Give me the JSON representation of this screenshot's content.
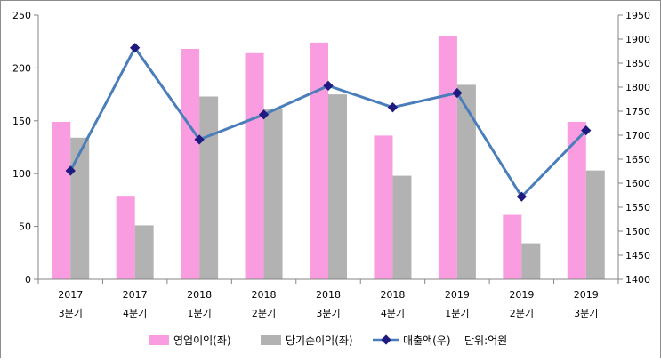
{
  "chart_data": {
    "type": "bar",
    "categories": [
      [
        "2017",
        "3분기"
      ],
      [
        "2017",
        "4분기"
      ],
      [
        "2018",
        "1분기"
      ],
      [
        "2018",
        "2분기"
      ],
      [
        "2018",
        "3분기"
      ],
      [
        "2018",
        "4분기"
      ],
      [
        "2019",
        "1분기"
      ],
      [
        "2019",
        "2분기"
      ],
      [
        "2019",
        "3분기"
      ]
    ],
    "series": [
      {
        "name": "영업이익(좌)",
        "type": "bar",
        "axis": "left",
        "color": "#f99ce0",
        "values": [
          149,
          79,
          218,
          214,
          224,
          136,
          230,
          61,
          149
        ]
      },
      {
        "name": "당기순이익(좌)",
        "type": "bar",
        "axis": "left",
        "color": "#b2b2b2",
        "values": [
          134,
          51,
          173,
          161,
          175,
          98,
          184,
          34,
          103
        ]
      },
      {
        "name": "매출액(우)",
        "type": "line",
        "axis": "right",
        "color": "#4a7ebb",
        "marker_color": "#1f1a80",
        "values": [
          1626,
          1882,
          1691,
          1743,
          1803,
          1758,
          1788,
          1572,
          1710
        ]
      }
    ],
    "y_left": {
      "min": 0,
      "max": 250,
      "step": 50,
      "ticks": [
        "0",
        "50",
        "100",
        "150",
        "200",
        "250"
      ]
    },
    "y_right": {
      "min": 1400,
      "max": 1950,
      "step": 50,
      "ticks": [
        "1400",
        "1450",
        "1500",
        "1550",
        "1600",
        "1650",
        "1700",
        "1750",
        "1800",
        "1850",
        "1900",
        "1950"
      ]
    },
    "unit_note": "단위:억원",
    "legend_position": "bottom",
    "grid": false
  }
}
